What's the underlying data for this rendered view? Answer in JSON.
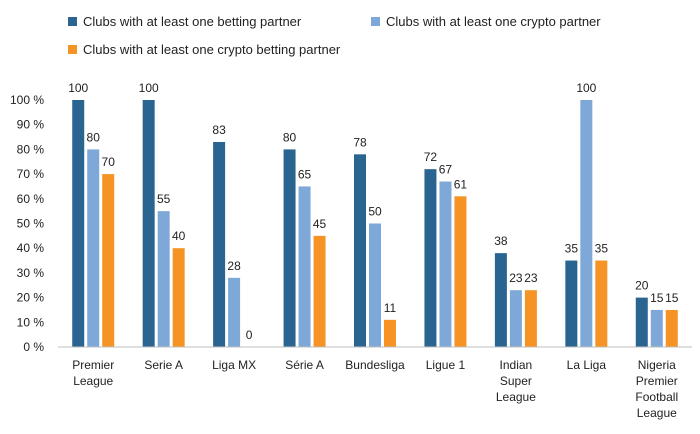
{
  "chart_data": {
    "type": "bar",
    "categories": [
      "Premier League",
      "Serie A",
      "Liga MX",
      "Série A",
      "Bundesliga",
      "Ligue 1",
      "Indian Super League",
      "La Liga",
      "Nigeria Premier Football League"
    ],
    "category_lines": [
      [
        "Premier",
        "League"
      ],
      [
        "Serie A"
      ],
      [
        "Liga MX"
      ],
      [
        "Série A"
      ],
      [
        "Bundesliga"
      ],
      [
        "Ligue 1"
      ],
      [
        "Indian",
        "Super",
        "League"
      ],
      [
        "La Liga"
      ],
      [
        "Nigeria",
        "Premier",
        "Football",
        "League"
      ]
    ],
    "series": [
      {
        "name": "Clubs with at least one betting partner",
        "color": "#2a6592",
        "values": [
          100,
          100,
          83,
          80,
          78,
          72,
          38,
          35,
          20
        ]
      },
      {
        "name": "Clubs with at least one crypto partner",
        "color": "#7ea8d8",
        "values": [
          80,
          55,
          28,
          65,
          50,
          67,
          23,
          100,
          15
        ]
      },
      {
        "name": "Clubs with at least one crypto betting partner",
        "color": "#f59324",
        "values": [
          70,
          40,
          0,
          45,
          11,
          61,
          23,
          35,
          15
        ]
      }
    ],
    "ylim": [
      0,
      100
    ],
    "y_ticks": [
      0,
      10,
      20,
      30,
      40,
      50,
      60,
      70,
      80,
      90,
      100
    ],
    "y_tick_labels": [
      "0 %",
      "10 %",
      "20 %",
      "30 %",
      "40 %",
      "50 %",
      "60 %",
      "70 %",
      "80 %",
      "90 %",
      "100 %"
    ],
    "grid": false,
    "legend_position": "top"
  }
}
